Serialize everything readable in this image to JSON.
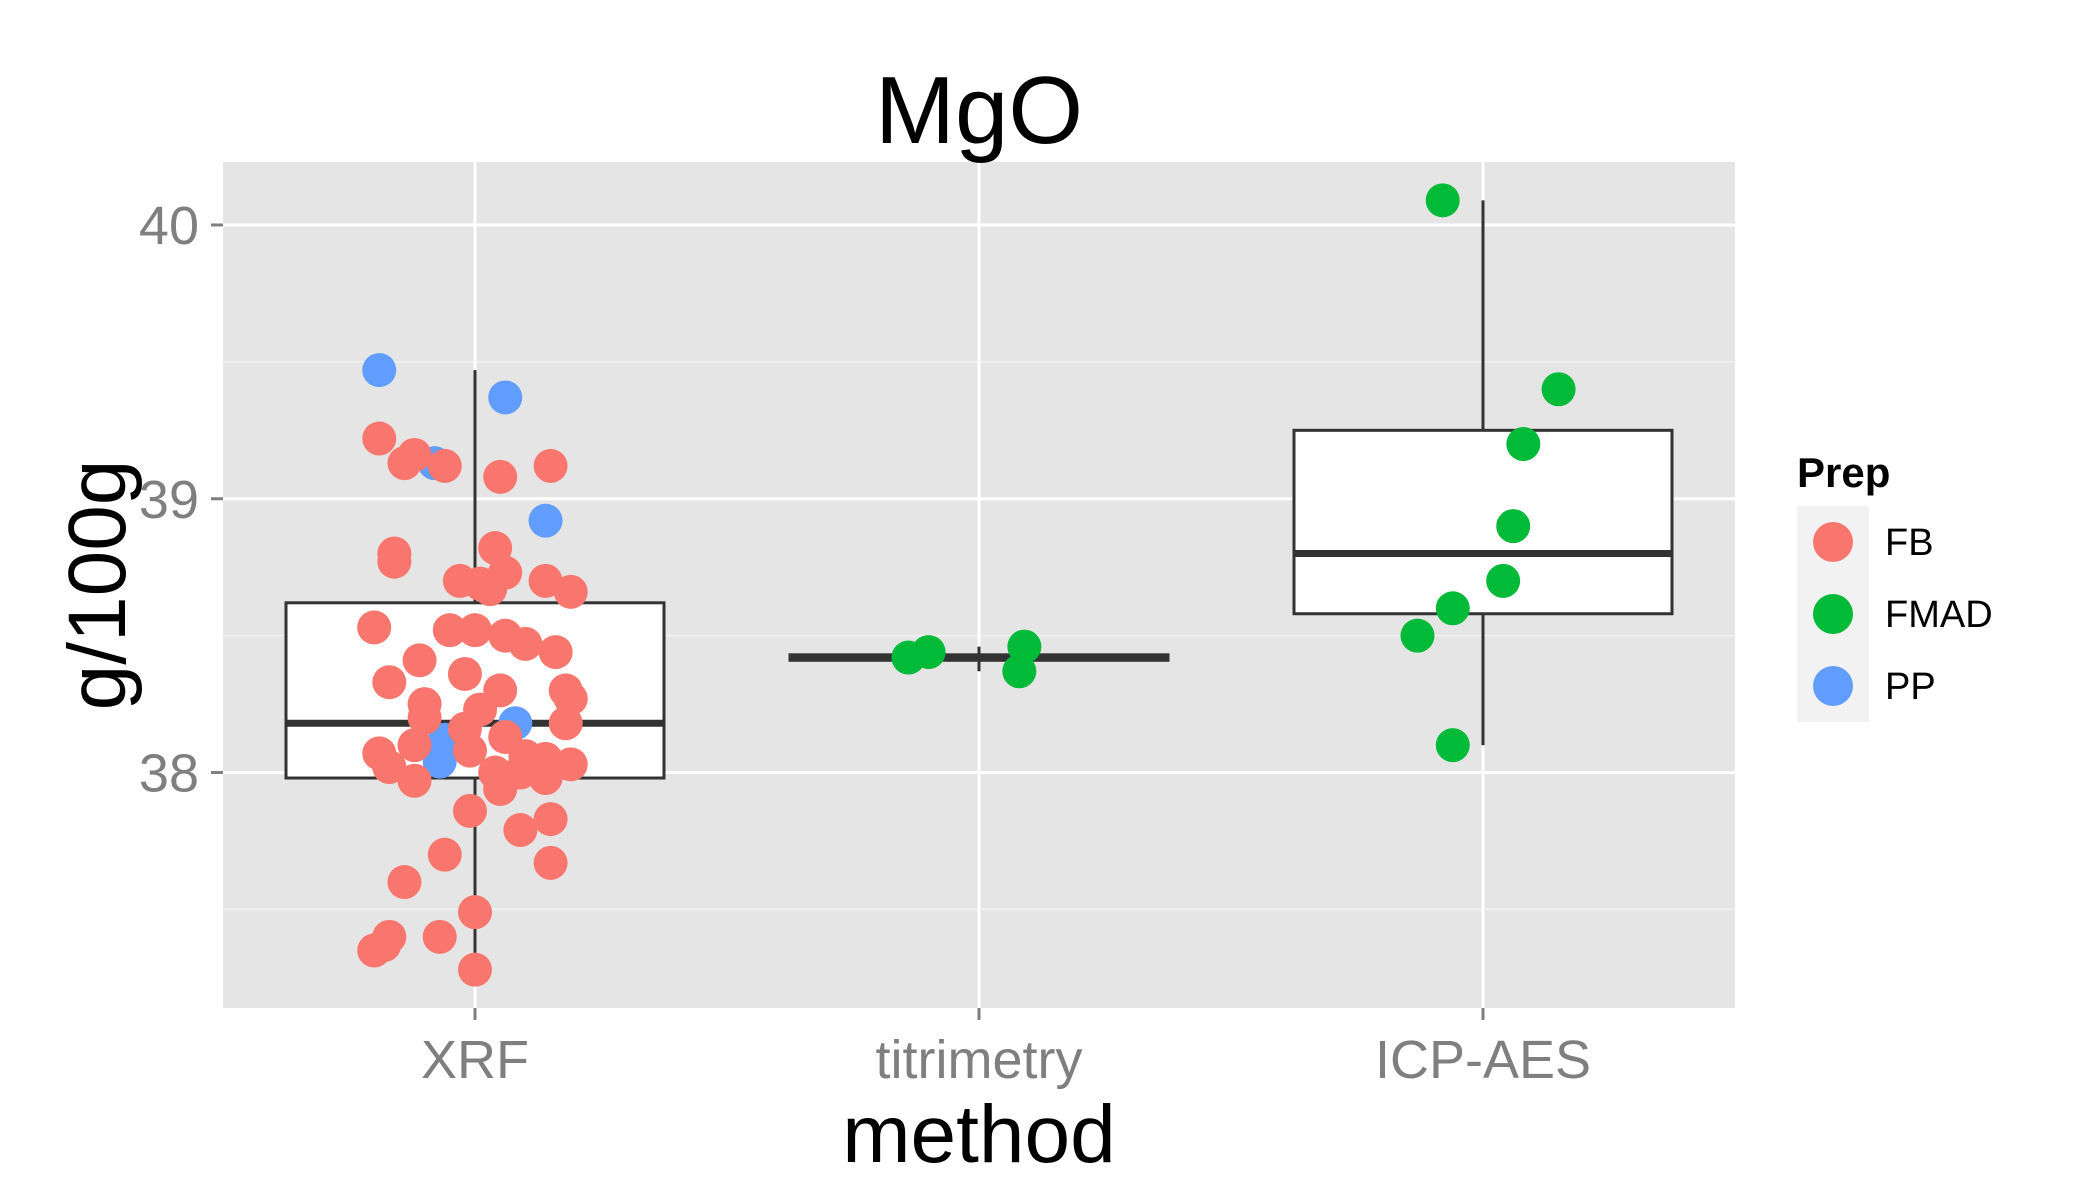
{
  "chart_data": {
    "type": "boxplot",
    "title": "MgO",
    "xlabel": "method",
    "ylabel": "g/100g",
    "categories": [
      "XRF",
      "titrimetry",
      "ICP-AES"
    ],
    "ylim": [
      37.14,
      40.23
    ],
    "y_ticks": [
      38,
      39,
      40
    ],
    "grid": true,
    "legend": {
      "title": "Prep",
      "placement": "right",
      "entries": [
        {
          "name": "FB",
          "color": "#F8766D"
        },
        {
          "name": "FMAD",
          "color": "#00BA38"
        },
        {
          "name": "PP",
          "color": "#619CFF"
        }
      ]
    },
    "boxes": [
      {
        "category": "XRF",
        "whisker_low": 37.28,
        "q1": 37.98,
        "median": 38.18,
        "q3": 38.62,
        "whisker_high": 39.47
      },
      {
        "category": "titrimetry",
        "whisker_low": 38.37,
        "q1": 38.41,
        "median": 38.42,
        "q3": 38.43,
        "whisker_high": 38.46
      },
      {
        "category": "ICP-AES",
        "whisker_low": 38.1,
        "q1": 38.58,
        "median": 38.8,
        "q3": 39.25,
        "whisker_high": 40.09
      }
    ],
    "points": [
      {
        "category": "XRF",
        "y": 39.47,
        "prep": "PP",
        "jitter": -0.19
      },
      {
        "category": "XRF",
        "y": 39.37,
        "prep": "PP",
        "jitter": 0.06
      },
      {
        "category": "XRF",
        "y": 39.13,
        "prep": "PP",
        "jitter": -0.08
      },
      {
        "category": "XRF",
        "y": 38.92,
        "prep": "PP",
        "jitter": 0.14
      },
      {
        "category": "XRF",
        "y": 38.18,
        "prep": "PP",
        "jitter": 0.08
      },
      {
        "category": "XRF",
        "y": 38.12,
        "prep": "PP",
        "jitter": -0.06
      },
      {
        "category": "XRF",
        "y": 38.04,
        "prep": "PP",
        "jitter": -0.07
      },
      {
        "category": "XRF",
        "y": 39.22,
        "prep": "FB",
        "jitter": -0.19
      },
      {
        "category": "XRF",
        "y": 39.16,
        "prep": "FB",
        "jitter": -0.12
      },
      {
        "category": "XRF",
        "y": 39.13,
        "prep": "FB",
        "jitter": -0.14
      },
      {
        "category": "XRF",
        "y": 39.12,
        "prep": "FB",
        "jitter": -0.06
      },
      {
        "category": "XRF",
        "y": 39.12,
        "prep": "FB",
        "jitter": 0.15
      },
      {
        "category": "XRF",
        "y": 39.08,
        "prep": "FB",
        "jitter": 0.05
      },
      {
        "category": "XRF",
        "y": 38.8,
        "prep": "FB",
        "jitter": -0.16
      },
      {
        "category": "XRF",
        "y": 38.77,
        "prep": "FB",
        "jitter": -0.16
      },
      {
        "category": "XRF",
        "y": 38.82,
        "prep": "FB",
        "jitter": 0.04
      },
      {
        "category": "XRF",
        "y": 38.73,
        "prep": "FB",
        "jitter": 0.06
      },
      {
        "category": "XRF",
        "y": 38.7,
        "prep": "FB",
        "jitter": -0.03
      },
      {
        "category": "XRF",
        "y": 38.69,
        "prep": "FB",
        "jitter": 0.01
      },
      {
        "category": "XRF",
        "y": 38.7,
        "prep": "FB",
        "jitter": 0.14
      },
      {
        "category": "XRF",
        "y": 38.66,
        "prep": "FB",
        "jitter": 0.19
      },
      {
        "category": "XRF",
        "y": 38.67,
        "prep": "FB",
        "jitter": 0.03
      },
      {
        "category": "XRF",
        "y": 38.53,
        "prep": "FB",
        "jitter": -0.2
      },
      {
        "category": "XRF",
        "y": 38.52,
        "prep": "FB",
        "jitter": -0.05
      },
      {
        "category": "XRF",
        "y": 38.52,
        "prep": "FB",
        "jitter": 0.0
      },
      {
        "category": "XRF",
        "y": 38.5,
        "prep": "FB",
        "jitter": 0.06
      },
      {
        "category": "XRF",
        "y": 38.47,
        "prep": "FB",
        "jitter": 0.1
      },
      {
        "category": "XRF",
        "y": 38.44,
        "prep": "FB",
        "jitter": 0.16
      },
      {
        "category": "XRF",
        "y": 38.41,
        "prep": "FB",
        "jitter": -0.11
      },
      {
        "category": "XRF",
        "y": 38.36,
        "prep": "FB",
        "jitter": -0.02
      },
      {
        "category": "XRF",
        "y": 38.33,
        "prep": "FB",
        "jitter": -0.17
      },
      {
        "category": "XRF",
        "y": 38.3,
        "prep": "FB",
        "jitter": 0.05
      },
      {
        "category": "XRF",
        "y": 38.3,
        "prep": "FB",
        "jitter": 0.18
      },
      {
        "category": "XRF",
        "y": 38.27,
        "prep": "FB",
        "jitter": 0.19
      },
      {
        "category": "XRF",
        "y": 38.25,
        "prep": "FB",
        "jitter": -0.1
      },
      {
        "category": "XRF",
        "y": 38.23,
        "prep": "FB",
        "jitter": 0.01
      },
      {
        "category": "XRF",
        "y": 38.2,
        "prep": "FB",
        "jitter": -0.1
      },
      {
        "category": "XRF",
        "y": 38.18,
        "prep": "FB",
        "jitter": 0.18
      },
      {
        "category": "XRF",
        "y": 38.16,
        "prep": "FB",
        "jitter": -0.02
      },
      {
        "category": "XRF",
        "y": 38.13,
        "prep": "FB",
        "jitter": 0.06
      },
      {
        "category": "XRF",
        "y": 38.1,
        "prep": "FB",
        "jitter": -0.12
      },
      {
        "category": "XRF",
        "y": 38.08,
        "prep": "FB",
        "jitter": -0.01
      },
      {
        "category": "XRF",
        "y": 38.07,
        "prep": "FB",
        "jitter": -0.19
      },
      {
        "category": "XRF",
        "y": 38.06,
        "prep": "FB",
        "jitter": 0.1
      },
      {
        "category": "XRF",
        "y": 38.05,
        "prep": "FB",
        "jitter": 0.14
      },
      {
        "category": "XRF",
        "y": 38.03,
        "prep": "FB",
        "jitter": 0.19
      },
      {
        "category": "XRF",
        "y": 38.02,
        "prep": "FB",
        "jitter": -0.17
      },
      {
        "category": "XRF",
        "y": 38.0,
        "prep": "FB",
        "jitter": 0.04
      },
      {
        "category": "XRF",
        "y": 38.0,
        "prep": "FB",
        "jitter": 0.09
      },
      {
        "category": "XRF",
        "y": 37.98,
        "prep": "FB",
        "jitter": 0.14
      },
      {
        "category": "XRF",
        "y": 37.97,
        "prep": "FB",
        "jitter": -0.12
      },
      {
        "category": "XRF",
        "y": 37.94,
        "prep": "FB",
        "jitter": 0.05
      },
      {
        "category": "XRF",
        "y": 37.86,
        "prep": "FB",
        "jitter": -0.01
      },
      {
        "category": "XRF",
        "y": 37.83,
        "prep": "FB",
        "jitter": 0.15
      },
      {
        "category": "XRF",
        "y": 37.79,
        "prep": "FB",
        "jitter": 0.09
      },
      {
        "category": "XRF",
        "y": 37.7,
        "prep": "FB",
        "jitter": -0.06
      },
      {
        "category": "XRF",
        "y": 37.67,
        "prep": "FB",
        "jitter": 0.15
      },
      {
        "category": "XRF",
        "y": 37.6,
        "prep": "FB",
        "jitter": -0.14
      },
      {
        "category": "XRF",
        "y": 37.49,
        "prep": "FB",
        "jitter": 0.0
      },
      {
        "category": "XRF",
        "y": 37.4,
        "prep": "FB",
        "jitter": -0.17
      },
      {
        "category": "XRF",
        "y": 37.4,
        "prep": "FB",
        "jitter": -0.07
      },
      {
        "category": "XRF",
        "y": 37.37,
        "prep": "FB",
        "jitter": -0.18
      },
      {
        "category": "XRF",
        "y": 37.35,
        "prep": "FB",
        "jitter": -0.2
      },
      {
        "category": "XRF",
        "y": 37.28,
        "prep": "FB",
        "jitter": 0.0
      },
      {
        "category": "titrimetry",
        "y": 38.42,
        "prep": "FMAD",
        "jitter": -0.14
      },
      {
        "category": "titrimetry",
        "y": 38.44,
        "prep": "FMAD",
        "jitter": -0.1
      },
      {
        "category": "titrimetry",
        "y": 38.46,
        "prep": "FMAD",
        "jitter": 0.09
      },
      {
        "category": "titrimetry",
        "y": 38.37,
        "prep": "FMAD",
        "jitter": 0.08
      },
      {
        "category": "ICP-AES",
        "y": 40.09,
        "prep": "FMAD",
        "jitter": -0.08
      },
      {
        "category": "ICP-AES",
        "y": 39.4,
        "prep": "FMAD",
        "jitter": 0.15
      },
      {
        "category": "ICP-AES",
        "y": 39.2,
        "prep": "FMAD",
        "jitter": 0.08
      },
      {
        "category": "ICP-AES",
        "y": 38.9,
        "prep": "FMAD",
        "jitter": 0.06
      },
      {
        "category": "ICP-AES",
        "y": 38.7,
        "prep": "FMAD",
        "jitter": 0.04
      },
      {
        "category": "ICP-AES",
        "y": 38.6,
        "prep": "FMAD",
        "jitter": -0.06
      },
      {
        "category": "ICP-AES",
        "y": 38.5,
        "prep": "FMAD",
        "jitter": -0.13
      },
      {
        "category": "ICP-AES",
        "y": 38.1,
        "prep": "FMAD",
        "jitter": -0.06
      }
    ]
  }
}
